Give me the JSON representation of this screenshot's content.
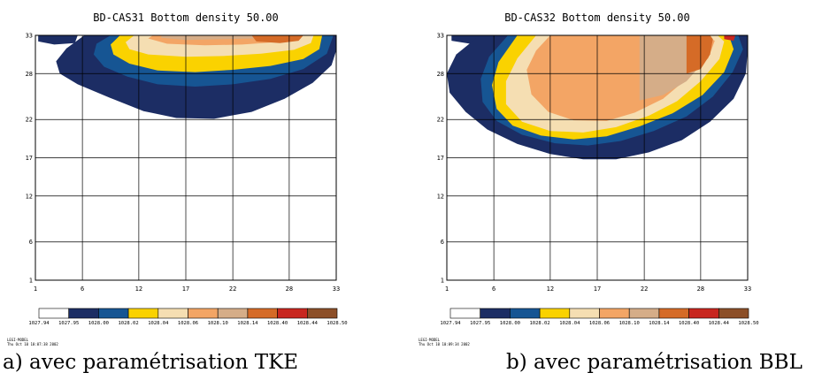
{
  "chart_data": [
    {
      "type": "contour",
      "title": "BD-CAS31 Bottom density 50.00",
      "caption": "a) avec paramétrisation TKE",
      "xlabel": "",
      "ylabel": "",
      "x_ticks": [
        "1",
        "6",
        "12",
        "17",
        "22",
        "28",
        "33"
      ],
      "y_ticks": [
        "1",
        "6",
        "12",
        "17",
        "22",
        "28",
        "33"
      ],
      "xlim": [
        1,
        33
      ],
      "ylim": [
        1,
        33
      ],
      "grid": true,
      "colorbar_levels": [
        "1027.94",
        "1027.95",
        "1028.00",
        "1028.02",
        "1028.04",
        "1028.06",
        "1028.10",
        "1028.14",
        "1028.40",
        "1028.44",
        "1028.50"
      ],
      "colorbar_colors": [
        "#ffffff",
        "#1c2d64",
        "#165593",
        "#fad200",
        "#f5deb2",
        "#f3a565",
        "#d5ad88",
        "#d56b27",
        "#c8261f",
        "#8c4f28"
      ],
      "stamp": [
        "LEGI-MODEL",
        "Thu Oct 10 10:07:38 2002"
      ],
      "regions": [
        {
          "level": 1,
          "poly": [
            [
              1.3,
              33
            ],
            [
              1.3,
              32.2
            ],
            [
              3,
              31.8
            ],
            [
              5.2,
              32
            ],
            [
              5.5,
              33
            ]
          ]
        },
        {
          "level": 1,
          "poly": [
            [
              6.2,
              33
            ],
            [
              4.3,
              31.3
            ],
            [
              3.2,
              29.6
            ],
            [
              3.6,
              28
            ],
            [
              5.5,
              26.6
            ],
            [
              9,
              24.8
            ],
            [
              12.5,
              23.1
            ],
            [
              16,
              22.2
            ],
            [
              20,
              22.1
            ],
            [
              24,
              23
            ],
            [
              27.5,
              24.7
            ],
            [
              30.5,
              26.8
            ],
            [
              32.5,
              29.1
            ],
            [
              33,
              31
            ],
            [
              33,
              33
            ]
          ]
        },
        {
          "level": 2,
          "poly": [
            [
              9,
              33
            ],
            [
              7.5,
              31.9
            ],
            [
              7.2,
              30.5
            ],
            [
              8.3,
              28.9
            ],
            [
              10.8,
              27.6
            ],
            [
              14,
              26.6
            ],
            [
              18,
              26.3
            ],
            [
              22,
              26.6
            ],
            [
              26,
              27.3
            ],
            [
              29.5,
              28.6
            ],
            [
              32,
              30.6
            ],
            [
              32.7,
              33
            ]
          ]
        },
        {
          "level": 3,
          "poly": [
            [
              10,
              33
            ],
            [
              9,
              31.8
            ],
            [
              9.3,
              30.5
            ],
            [
              11,
              29.3
            ],
            [
              14,
              28.4
            ],
            [
              18,
              28.2
            ],
            [
              22,
              28.5
            ],
            [
              26,
              29
            ],
            [
              29.5,
              29.9
            ],
            [
              31.2,
              31.2
            ],
            [
              31.5,
              33
            ]
          ]
        },
        {
          "level": 4,
          "poly": [
            [
              11.5,
              33
            ],
            [
              10.6,
              32.1
            ],
            [
              11,
              31.2
            ],
            [
              13,
              30.5
            ],
            [
              17,
              30.2
            ],
            [
              21,
              30.3
            ],
            [
              25,
              30.6
            ],
            [
              28.5,
              31.1
            ],
            [
              30.3,
              32
            ],
            [
              30.6,
              33
            ]
          ]
        },
        {
          "level": 5,
          "poly": [
            [
              13.5,
              33
            ],
            [
              13,
              32.6
            ],
            [
              15,
              31.9
            ],
            [
              19,
              31.7
            ],
            [
              23,
              31.8
            ],
            [
              26.5,
              32.1
            ],
            [
              28.5,
              32.6
            ],
            [
              29,
              33
            ]
          ]
        },
        {
          "level": 6,
          "poly": [
            [
              14.5,
              33
            ],
            [
              14.3,
              32.7
            ],
            [
              17,
              32.4
            ],
            [
              21,
              32.5
            ],
            [
              24.5,
              32.6
            ],
            [
              25,
              33
            ]
          ]
        },
        {
          "level": 7,
          "poly": [
            [
              24,
              33
            ],
            [
              24.5,
              32.2
            ],
            [
              27,
              32
            ],
            [
              29,
              32.3
            ],
            [
              29.5,
              33
            ]
          ]
        }
      ]
    },
    {
      "type": "contour",
      "title": "BD-CAS32 Bottom density 50.00",
      "caption": "b) avec paramétrisation BBL",
      "xlabel": "",
      "ylabel": "",
      "x_ticks": [
        "1",
        "6",
        "12",
        "17",
        "22",
        "28",
        "33"
      ],
      "y_ticks": [
        "1",
        "6",
        "12",
        "17",
        "22",
        "28",
        "33"
      ],
      "xlim": [
        1,
        33
      ],
      "ylim": [
        1,
        33
      ],
      "grid": true,
      "colorbar_levels": [
        "1027.94",
        "1027.95",
        "1028.00",
        "1028.02",
        "1028.04",
        "1028.06",
        "1028.10",
        "1028.14",
        "1028.40",
        "1028.44",
        "1028.50"
      ],
      "colorbar_colors": [
        "#ffffff",
        "#1c2d64",
        "#165593",
        "#fad200",
        "#f5deb2",
        "#f3a565",
        "#d5ad88",
        "#d56b27",
        "#c8261f",
        "#8c4f28"
      ],
      "stamp": [
        "LEGI-MODEL",
        "Thu Oct 10 10:09:34 2002"
      ],
      "regions": [
        {
          "level": 1,
          "poly": [
            [
              1.5,
              33
            ],
            [
              1.5,
              32.3
            ],
            [
              3.5,
              31.9
            ],
            [
              5.5,
              32
            ],
            [
              5.8,
              33
            ]
          ]
        },
        {
          "level": 1,
          "poly": [
            [
              4.5,
              33
            ],
            [
              2,
              30.5
            ],
            [
              1,
              28
            ],
            [
              1.3,
              25.5
            ],
            [
              3,
              23
            ],
            [
              5.3,
              20.7
            ],
            [
              8.5,
              18.8
            ],
            [
              12,
              17.5
            ],
            [
              15.5,
              16.8
            ],
            [
              19,
              16.8
            ],
            [
              22.5,
              17.7
            ],
            [
              26,
              19.3
            ],
            [
              29,
              21.7
            ],
            [
              31.5,
              24.7
            ],
            [
              32.8,
              28
            ],
            [
              33,
              31
            ],
            [
              33,
              33
            ]
          ]
        },
        {
          "level": 2,
          "poly": [
            [
              5.5,
              30.2
            ],
            [
              4.6,
              27.3
            ],
            [
              4.8,
              24.3
            ],
            [
              6.3,
              21.8
            ],
            [
              9,
              20
            ],
            [
              12.5,
              18.9
            ],
            [
              16,
              18.6
            ],
            [
              19.5,
              19.2
            ],
            [
              23,
              20.5
            ],
            [
              26.5,
              22.4
            ],
            [
              29.3,
              25
            ],
            [
              31.4,
              28.2
            ],
            [
              32.5,
              31.2
            ],
            [
              32,
              33
            ],
            [
              7.5,
              33
            ]
          ]
        },
        {
          "level": 3,
          "poly": [
            [
              6.5,
              29.5
            ],
            [
              5.8,
              26.5
            ],
            [
              6.3,
              23.4
            ],
            [
              8,
              21.2
            ],
            [
              11,
              19.9
            ],
            [
              14.5,
              19.4
            ],
            [
              18,
              19.8
            ],
            [
              21.5,
              21.1
            ],
            [
              25,
              22.8
            ],
            [
              28.2,
              25.2
            ],
            [
              30.5,
              28.2
            ],
            [
              31.5,
              31.2
            ],
            [
              31,
              33
            ],
            [
              8.5,
              33
            ]
          ]
        },
        {
          "level": 4,
          "poly": [
            [
              8.5,
              30
            ],
            [
              7.3,
              27
            ],
            [
              7.3,
              24
            ],
            [
              9,
              21.7
            ],
            [
              12,
              20.5
            ],
            [
              15.5,
              20.3
            ],
            [
              19,
              21
            ],
            [
              22.5,
              22.5
            ],
            [
              25.5,
              24.4
            ],
            [
              28,
              27
            ],
            [
              30,
              29.9
            ],
            [
              30.5,
              32.2
            ],
            [
              29.8,
              33
            ],
            [
              10.5,
              33
            ]
          ]
        },
        {
          "level": 5,
          "poly": [
            [
              10.5,
              31
            ],
            [
              9.5,
              28.5
            ],
            [
              10,
              25.3
            ],
            [
              11.8,
              23
            ],
            [
              14.5,
              21.9
            ],
            [
              18,
              21.8
            ],
            [
              21,
              22.9
            ],
            [
              24,
              24.7
            ],
            [
              26.5,
              27.3
            ],
            [
              28.8,
              30
            ],
            [
              29.5,
              32.3
            ],
            [
              28.5,
              33
            ],
            [
              12,
              33
            ]
          ]
        },
        {
          "level": 6,
          "poly": [
            [
              21.5,
              33
            ],
            [
              21.5,
              24.5
            ],
            [
              24,
              25.2
            ],
            [
              26.5,
              27
            ],
            [
              28.3,
              29.5
            ],
            [
              29,
              32
            ],
            [
              28,
              33
            ]
          ]
        },
        {
          "level": 7,
          "poly": [
            [
              26.5,
              33
            ],
            [
              26.5,
              28
            ],
            [
              28,
              28.6
            ],
            [
              29,
              30.5
            ],
            [
              29.3,
              32.5
            ],
            [
              29,
              33
            ]
          ]
        },
        {
          "level": 8,
          "poly": [
            [
              30.5,
              33
            ],
            [
              30.5,
              32.5
            ],
            [
              31.5,
              32.3
            ],
            [
              31.7,
              33
            ]
          ]
        }
      ]
    }
  ]
}
